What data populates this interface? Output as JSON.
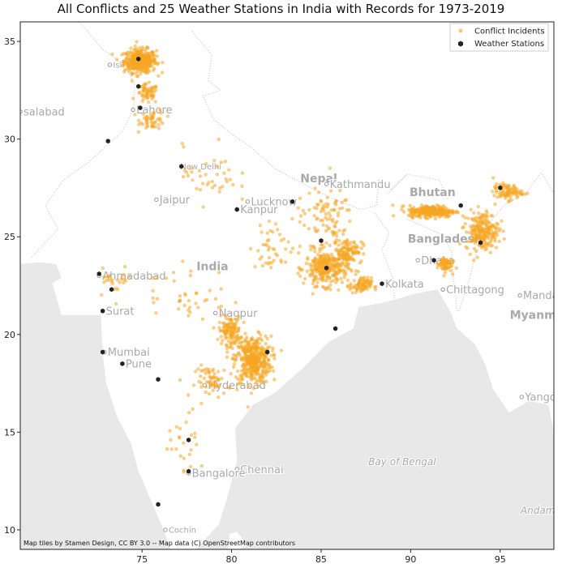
{
  "chart_data": {
    "type": "scatter",
    "title": "All Conflicts and 25 Weather Stations in India with Records for 1973-2019",
    "xlabel": "",
    "ylabel": "",
    "xlim": [
      68.2,
      98.0
    ],
    "ylim": [
      9.0,
      36.0
    ],
    "xticks": [
      75,
      80,
      85,
      90,
      95
    ],
    "yticks": [
      10,
      15,
      20,
      25,
      30,
      35
    ],
    "grid": false,
    "legend_position": "top-right",
    "legend": [
      {
        "label": "Conflict Incidents",
        "color": "#f5a623",
        "marker": "dot"
      },
      {
        "label": "Weather Stations",
        "color": "#222222",
        "marker": "hexagon"
      }
    ],
    "series": [
      {
        "name": "Weather Stations",
        "color": "#222222",
        "points": [
          [
            74.8,
            34.1
          ],
          [
            74.8,
            32.7
          ],
          [
            74.9,
            31.6
          ],
          [
            73.1,
            29.9
          ],
          [
            77.2,
            28.6
          ],
          [
            83.4,
            26.8
          ],
          [
            80.3,
            26.4
          ],
          [
            85.0,
            24.8
          ],
          [
            85.3,
            23.4
          ],
          [
            88.4,
            22.6
          ],
          [
            91.3,
            23.8
          ],
          [
            93.9,
            24.7
          ],
          [
            92.8,
            26.6
          ],
          [
            95.0,
            27.5
          ],
          [
            72.6,
            23.1
          ],
          [
            73.3,
            22.3
          ],
          [
            72.8,
            21.2
          ],
          [
            72.8,
            19.1
          ],
          [
            73.9,
            18.5
          ],
          [
            75.9,
            17.7
          ],
          [
            82.0,
            19.1
          ],
          [
            85.8,
            20.3
          ],
          [
            77.6,
            14.6
          ],
          [
            77.6,
            13.0
          ],
          [
            75.9,
            11.3
          ]
        ]
      },
      {
        "name": "Conflict Incidents",
        "color": "#f5a623",
        "clusters": [
          {
            "center": [
              74.9,
              34.0
            ],
            "spread": [
              0.9,
              0.6
            ],
            "count": 380
          },
          {
            "center": [
              75.3,
              32.3
            ],
            "spread": [
              0.6,
              0.5
            ],
            "count": 60
          },
          {
            "center": [
              75.6,
              31.0
            ],
            "spread": [
              0.7,
              0.5
            ],
            "count": 50
          },
          {
            "center": [
              81.2,
              18.7
            ],
            "spread": [
              1.0,
              1.2
            ],
            "count": 420
          },
          {
            "center": [
              79.9,
              20.2
            ],
            "spread": [
              0.6,
              0.7
            ],
            "count": 120
          },
          {
            "center": [
              79.0,
              17.6
            ],
            "spread": [
              1.0,
              0.8
            ],
            "count": 60
          },
          {
            "center": [
              85.3,
              23.4
            ],
            "spread": [
              1.2,
              0.9
            ],
            "count": 300
          },
          {
            "center": [
              86.5,
              24.3
            ],
            "spread": [
              0.8,
              0.6
            ],
            "count": 100
          },
          {
            "center": [
              87.2,
              22.5
            ],
            "spread": [
              0.6,
              0.4
            ],
            "count": 80
          },
          {
            "center": [
              91.2,
              26.3
            ],
            "spread": [
              1.3,
              0.3
            ],
            "count": 280
          },
          {
            "center": [
              94.0,
              25.3
            ],
            "spread": [
              0.9,
              1.0
            ],
            "count": 220
          },
          {
            "center": [
              95.4,
              27.3
            ],
            "spread": [
              0.8,
              0.4
            ],
            "count": 90
          },
          {
            "center": [
              91.9,
              23.6
            ],
            "spread": [
              0.4,
              0.4
            ],
            "count": 70
          },
          {
            "center": [
              85.2,
              26.0
            ],
            "spread": [
              1.6,
              1.4
            ],
            "count": 90
          },
          {
            "center": [
              78.8,
              28.2
            ],
            "spread": [
              1.5,
              1.5
            ],
            "count": 40
          },
          {
            "center": [
              77.5,
              22.0
            ],
            "spread": [
              2.5,
              1.6
            ],
            "count": 40
          },
          {
            "center": [
              77.5,
              14.5
            ],
            "spread": [
              1.0,
              1.5
            ],
            "count": 25
          },
          {
            "center": [
              73.5,
              22.8
            ],
            "spread": [
              1.0,
              0.8
            ],
            "count": 25
          },
          {
            "center": [
              82.5,
              24.5
            ],
            "spread": [
              1.5,
              1.2
            ],
            "count": 45
          }
        ]
      }
    ]
  },
  "places": [
    {
      "name": "Isl",
      "lon": 73.2,
      "lat": 33.8,
      "size": 10,
      "marker": true
    },
    {
      "name": "Lahore",
      "lon": 74.5,
      "lat": 31.5,
      "size": 13,
      "marker": true
    },
    {
      "name": "salabad",
      "lon": 68.2,
      "lat": 31.4,
      "size": 13,
      "marker": true
    },
    {
      "name": "New Delhi",
      "lon": 77.5,
      "lat": 28.6,
      "size": 10,
      "marker": false
    },
    {
      "name": "Nepal",
      "lon": 84.2,
      "lat": 28.0,
      "size": 14,
      "marker": false,
      "bold": true
    },
    {
      "name": "Kathmandu",
      "lon": 85.3,
      "lat": 27.7,
      "size": 13,
      "marker": true
    },
    {
      "name": "Jaipur",
      "lon": 75.8,
      "lat": 26.9,
      "size": 13,
      "marker": true
    },
    {
      "name": "Lucknow",
      "lon": 80.9,
      "lat": 26.8,
      "size": 13,
      "marker": true
    },
    {
      "name": "Bhutan",
      "lon": 90.3,
      "lat": 27.3,
      "size": 14,
      "marker": false,
      "bold": true
    },
    {
      "name": "Kanpur",
      "lon": 80.3,
      "lat": 26.4,
      "size": 13,
      "marker": true
    },
    {
      "name": "Bangladesh",
      "lon": 90.2,
      "lat": 24.9,
      "size": 14,
      "marker": false,
      "bold": true
    },
    {
      "name": "Ahmadabad",
      "lon": 72.6,
      "lat": 23.0,
      "size": 13,
      "marker": true
    },
    {
      "name": "India",
      "lon": 78.4,
      "lat": 23.5,
      "size": 14,
      "marker": false,
      "bold": true
    },
    {
      "name": "Dhaka",
      "lon": 90.4,
      "lat": 23.8,
      "size": 13,
      "marker": true
    },
    {
      "name": "Kolkata",
      "lon": 88.4,
      "lat": 22.6,
      "size": 13,
      "marker": true
    },
    {
      "name": "Chittagong",
      "lon": 91.8,
      "lat": 22.3,
      "size": 13,
      "marker": true
    },
    {
      "name": "Mandalay",
      "lon": 96.1,
      "lat": 22.0,
      "size": 13,
      "marker": true
    },
    {
      "name": "Surat",
      "lon": 72.8,
      "lat": 21.2,
      "size": 13,
      "marker": true
    },
    {
      "name": "Nagpur",
      "lon": 79.1,
      "lat": 21.1,
      "size": 13,
      "marker": true
    },
    {
      "name": "Myanmar",
      "lon": 95.9,
      "lat": 21.0,
      "size": 14,
      "marker": false,
      "bold": true
    },
    {
      "name": "Mumbai",
      "lon": 72.9,
      "lat": 19.1,
      "size": 13,
      "marker": true
    },
    {
      "name": "Pune",
      "lon": 73.9,
      "lat": 18.5,
      "size": 13,
      "marker": true
    },
    {
      "name": "Hyderabad",
      "lon": 78.5,
      "lat": 17.4,
      "size": 13,
      "marker": true
    },
    {
      "name": "Yangon",
      "lon": 96.2,
      "lat": 16.8,
      "size": 13,
      "marker": true
    },
    {
      "name": "Bay of Bengal",
      "lon": 88.0,
      "lat": 13.5,
      "size": 12,
      "marker": false,
      "italic": true
    },
    {
      "name": "Chennai",
      "lon": 80.3,
      "lat": 13.1,
      "size": 13,
      "marker": true
    },
    {
      "name": "Bangalore",
      "lon": 77.6,
      "lat": 12.9,
      "size": 13,
      "marker": true
    },
    {
      "name": "Andaman Sea",
      "lon": 96.5,
      "lat": 11.0,
      "size": 12,
      "marker": false,
      "italic": true
    },
    {
      "name": "Cochin",
      "lon": 76.3,
      "lat": 10.0,
      "size": 10,
      "marker": true
    }
  ],
  "credit": "Map tiles by Stamen Design, CC BY 3.0 -- Map data (C) OpenStreetMap contributors",
  "colors": {
    "land": "#ffffff",
    "sea": "#e8e8e8",
    "conflict": "#f5a623",
    "station": "#222222",
    "place_label": "#a9a9a9"
  }
}
